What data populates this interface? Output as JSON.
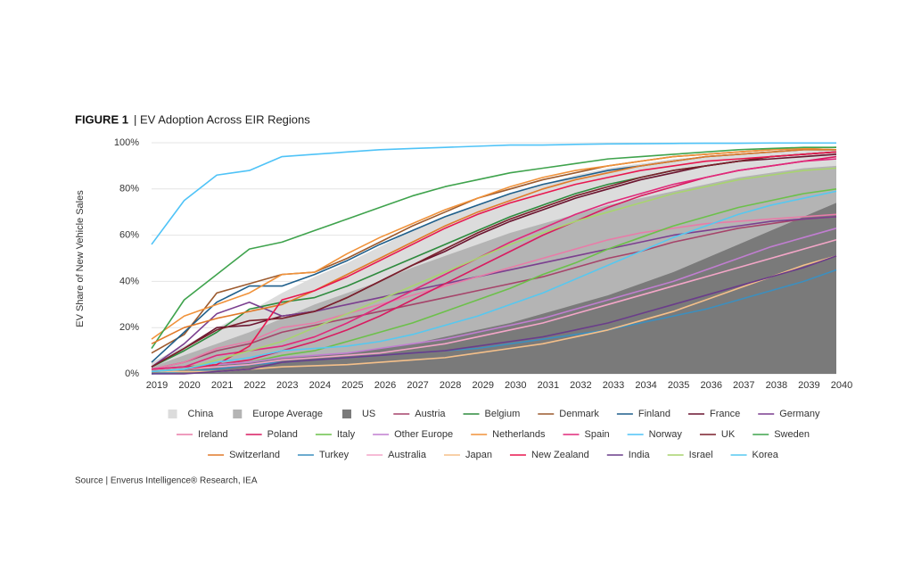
{
  "chart_data": {
    "type": "line",
    "title_label": "FIGURE 1",
    "title": "| EV Adoption Across EIR Regions",
    "y_label": "EV Share of New Vehicle Sales",
    "source": "Source | Enverus Intelligence® Research, IEA",
    "x": [
      2019,
      2020,
      2021,
      2022,
      2023,
      2024,
      2025,
      2026,
      2027,
      2028,
      2029,
      2030,
      2031,
      2032,
      2033,
      2034,
      2035,
      2036,
      2037,
      2038,
      2039,
      2040
    ],
    "xlim": [
      2019,
      2040
    ],
    "xticks": [
      2019,
      2020,
      2021,
      2022,
      2023,
      2024,
      2025,
      2026,
      2027,
      2028,
      2029,
      2030,
      2031,
      2032,
      2033,
      2034,
      2035,
      2036,
      2037,
      2038,
      2039,
      2040
    ],
    "ylim": [
      0,
      100
    ],
    "yticks": [
      {
        "value": 0,
        "label": "0%"
      },
      {
        "value": 20,
        "label": "20%"
      },
      {
        "value": 40,
        "label": "40%"
      },
      {
        "value": 60,
        "label": "60%"
      },
      {
        "value": 80,
        "label": "80%"
      },
      {
        "value": 100,
        "label": "100%"
      }
    ],
    "grid": true,
    "series": [
      {
        "name": "China",
        "type": "area",
        "color": "#dcdcdc",
        "values": [
          5,
          12,
          20,
          27,
          35,
          42,
          48,
          55,
          62,
          68,
          73,
          78,
          82,
          86,
          89,
          91,
          93,
          94,
          95,
          96,
          96.5,
          97
        ]
      },
      {
        "name": "Europe Average",
        "type": "area",
        "color": "#b4b4b4",
        "values": [
          3,
          8,
          13,
          18,
          24,
          30,
          35,
          40,
          46,
          51,
          56,
          61,
          65,
          69,
          73,
          76,
          79,
          82,
          85,
          87,
          89,
          90
        ]
      },
      {
        "name": "US",
        "type": "area",
        "color": "#7a7a7a",
        "values": [
          1,
          2,
          4,
          5,
          7,
          8,
          9,
          11,
          13,
          16,
          19,
          22,
          26,
          30,
          34,
          39,
          44,
          50,
          56,
          62,
          68,
          74
        ]
      },
      {
        "name": "Austria",
        "type": "line",
        "color": "#a6446a",
        "values": [
          2,
          5,
          10,
          13,
          18,
          21,
          24,
          27,
          30,
          33,
          36,
          39,
          42,
          46,
          50,
          53,
          57,
          60,
          63,
          65,
          67,
          68
        ]
      },
      {
        "name": "Belgium",
        "type": "line",
        "color": "#2e8b3e",
        "values": [
          3,
          10,
          18,
          28,
          31,
          33,
          38,
          44,
          50,
          56,
          62,
          68,
          73,
          78,
          82,
          85,
          88,
          90,
          92,
          94,
          95,
          96
        ]
      },
      {
        "name": "Denmark",
        "type": "line",
        "color": "#9c5a2e",
        "values": [
          9,
          17,
          35,
          39,
          43,
          44,
          50,
          57,
          64,
          70,
          76,
          80,
          84,
          87,
          90,
          92,
          94,
          95,
          96,
          97,
          97.5,
          98
        ]
      },
      {
        "name": "Finland",
        "type": "line",
        "color": "#1f5f8b",
        "values": [
          5,
          18,
          31,
          38,
          38,
          43,
          49,
          56,
          62,
          68,
          73,
          78,
          82,
          85,
          88,
          90,
          92,
          94,
          95,
          96,
          97,
          97
        ]
      },
      {
        "name": "France",
        "type": "line",
        "color": "#6b1530",
        "values": [
          3,
          11,
          20,
          21,
          25,
          27,
          33,
          40,
          47,
          53,
          60,
          66,
          71,
          76,
          80,
          84,
          87,
          90,
          92,
          93,
          94,
          95
        ]
      },
      {
        "name": "Germany",
        "type": "line",
        "color": "#7b3f8f",
        "values": [
          3,
          13,
          26,
          31,
          25,
          27,
          30,
          33,
          36,
          39,
          42,
          45,
          48,
          51,
          54,
          57,
          60,
          62,
          64,
          66,
          67,
          68
        ]
      },
      {
        "name": "Ireland",
        "type": "line",
        "color": "#e87ca8",
        "values": [
          2,
          5,
          11,
          14,
          20,
          22,
          26,
          30,
          34,
          38,
          42,
          46,
          50,
          54,
          58,
          61,
          63,
          65,
          66,
          67,
          68,
          69
        ]
      },
      {
        "name": "Poland",
        "type": "line",
        "color": "#d81b60",
        "values": [
          2,
          3,
          4,
          6,
          10,
          14,
          19,
          25,
          32,
          39,
          46,
          53,
          60,
          66,
          72,
          77,
          81,
          85,
          88,
          90,
          92,
          94
        ]
      },
      {
        "name": "Italy",
        "type": "line",
        "color": "#6cc04a",
        "values": [
          1,
          2,
          4,
          5,
          8,
          10,
          14,
          18,
          22,
          27,
          32,
          37,
          43,
          48,
          54,
          59,
          64,
          68,
          72,
          75,
          78,
          80
        ]
      },
      {
        "name": "Other Europe",
        "type": "line",
        "color": "#c17ed1",
        "values": [
          1,
          2,
          4,
          5,
          7,
          8,
          9,
          11,
          13,
          15,
          18,
          21,
          24,
          28,
          32,
          36,
          40,
          45,
          50,
          55,
          59,
          63
        ]
      },
      {
        "name": "Netherlands",
        "type": "line",
        "color": "#f0923a",
        "values": [
          15,
          25,
          30,
          35,
          43,
          44,
          52,
          59,
          65,
          71,
          76,
          81,
          85,
          88,
          90,
          92,
          94,
          95,
          96,
          97,
          97.5,
          98
        ]
      },
      {
        "name": "Spain",
        "type": "line",
        "color": "#e0287a",
        "values": [
          2,
          3,
          8,
          10,
          12,
          16,
          22,
          29,
          36,
          43,
          50,
          57,
          63,
          69,
          74,
          78,
          82,
          85,
          88,
          90,
          92,
          93
        ]
      },
      {
        "name": "Norway",
        "type": "line",
        "color": "#4fc3f7",
        "values": [
          56,
          75,
          86,
          88,
          94,
          95,
          96,
          97,
          97.5,
          98,
          98.5,
          99,
          99,
          99.3,
          99.5,
          99.6,
          99.7,
          99.8,
          99.8,
          99.9,
          99.9,
          99.9
        ]
      },
      {
        "name": "UK",
        "type": "line",
        "color": "#7a1f2b",
        "values": [
          3,
          11,
          19,
          23,
          24,
          27,
          33,
          40,
          47,
          54,
          61,
          67,
          72,
          77,
          81,
          85,
          88,
          90,
          92,
          94,
          95,
          96
        ]
      },
      {
        "name": "Sweden",
        "type": "line",
        "color": "#3fa34d",
        "values": [
          11,
          32,
          43,
          54,
          57,
          62,
          67,
          72,
          77,
          81,
          84,
          87,
          89,
          91,
          93,
          94,
          95,
          96,
          97,
          97.5,
          98,
          98
        ]
      },
      {
        "name": "Switzerland",
        "type": "line",
        "color": "#e07a2a",
        "values": [
          13,
          20,
          24,
          27,
          30,
          36,
          43,
          50,
          57,
          64,
          70,
          75,
          80,
          84,
          87,
          90,
          92,
          94,
          95,
          96,
          97,
          97
        ]
      },
      {
        "name": "Turkey",
        "type": "line",
        "color": "#3c8fbf",
        "values": [
          0,
          1,
          2,
          4,
          5,
          6,
          7,
          8,
          9,
          10,
          11,
          13,
          15,
          17,
          19,
          22,
          25,
          28,
          32,
          36,
          40,
          45
        ]
      },
      {
        "name": "Australia",
        "type": "line",
        "color": "#f4a6c8",
        "values": [
          1,
          2,
          3,
          4,
          6,
          7,
          8,
          9,
          11,
          13,
          16,
          19,
          22,
          26,
          30,
          34,
          38,
          42,
          46,
          50,
          54,
          58
        ]
      },
      {
        "name": "Japan",
        "type": "line",
        "color": "#f5c08a",
        "values": [
          1,
          1,
          1,
          2,
          3,
          3.5,
          4,
          5,
          6,
          7,
          9,
          11,
          13,
          16,
          19,
          23,
          27,
          32,
          37,
          42,
          47,
          51
        ]
      },
      {
        "name": "New Zealand",
        "type": "line",
        "color": "#e8174f",
        "values": [
          1,
          2,
          4,
          12,
          32,
          36,
          42,
          49,
          56,
          63,
          69,
          74,
          78,
          82,
          85,
          88,
          90,
          92,
          93,
          94,
          95,
          96
        ]
      },
      {
        "name": "India",
        "type": "line",
        "color": "#6a3d8a",
        "values": [
          0,
          0,
          1,
          2,
          5,
          6,
          7,
          8,
          9,
          10,
          12,
          14,
          16,
          19,
          22,
          26,
          30,
          34,
          38,
          42,
          46,
          51
        ]
      },
      {
        "name": "Israel",
        "type": "line",
        "color": "#a8d46f",
        "values": [
          1,
          2,
          6,
          10,
          14,
          20,
          26,
          32,
          38,
          44,
          50,
          56,
          61,
          66,
          70,
          74,
          78,
          81,
          84,
          86,
          88,
          89
        ]
      },
      {
        "name": "Korea",
        "type": "line",
        "color": "#56c8f0",
        "values": [
          1,
          2,
          5,
          7,
          10,
          11,
          12,
          14,
          17,
          21,
          25,
          30,
          35,
          41,
          47,
          53,
          59,
          64,
          69,
          73,
          76,
          79
        ]
      }
    ],
    "legend_rows": [
      9,
      9,
      8
    ]
  }
}
